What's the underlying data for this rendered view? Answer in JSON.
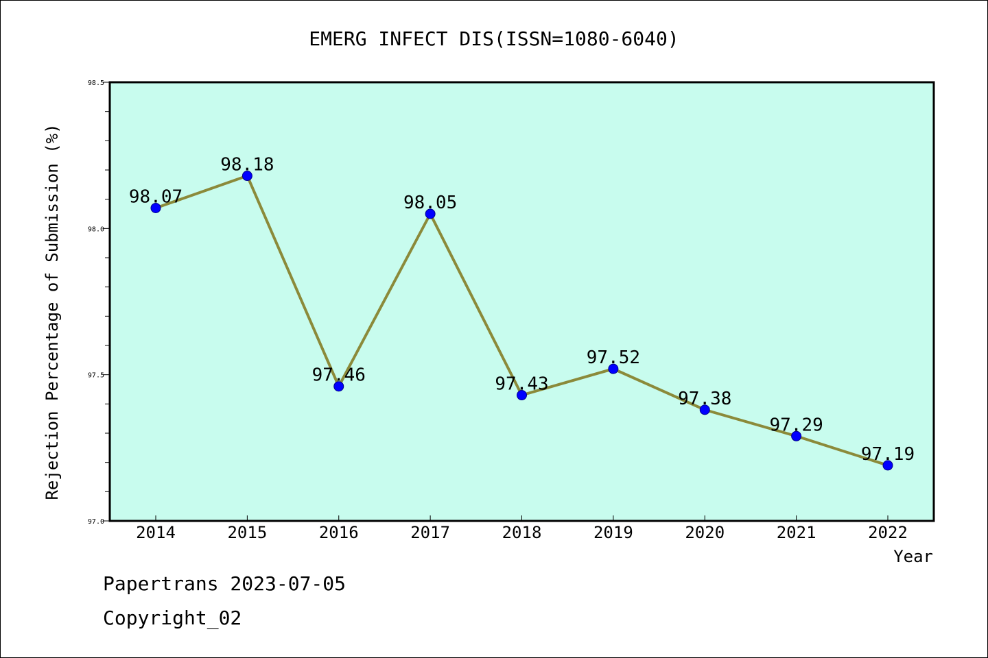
{
  "chart_data": {
    "type": "line",
    "title": "EMERG INFECT DIS(ISSN=1080-6040)",
    "xlabel": "Year",
    "ylabel": "Rejection Percentage of Submission (%)",
    "categories": [
      "2014",
      "2015",
      "2016",
      "2017",
      "2018",
      "2019",
      "2020",
      "2021",
      "2022"
    ],
    "series": [
      {
        "values": [
          98.07,
          98.18,
          97.46,
          98.05,
          97.43,
          97.52,
          97.38,
          97.29,
          97.19
        ],
        "labels": [
          "98.07",
          "98.18",
          "97.46",
          "98.05",
          "97.43",
          "97.52",
          "97.38",
          "97.29",
          "97.19"
        ]
      }
    ],
    "ylim": [
      97.0,
      98.5
    ],
    "yticks": [
      "97.0",
      "97.5",
      "98.0",
      "98.5"
    ],
    "grid": false,
    "colors": {
      "plot_background": "#c8fcee",
      "line": "#8b8a3a",
      "marker": "#0000ff",
      "marker_edge": "#00008b"
    }
  },
  "footer": {
    "credit": "Papertrans 2023-07-05",
    "copyright": "Copyright_02"
  }
}
